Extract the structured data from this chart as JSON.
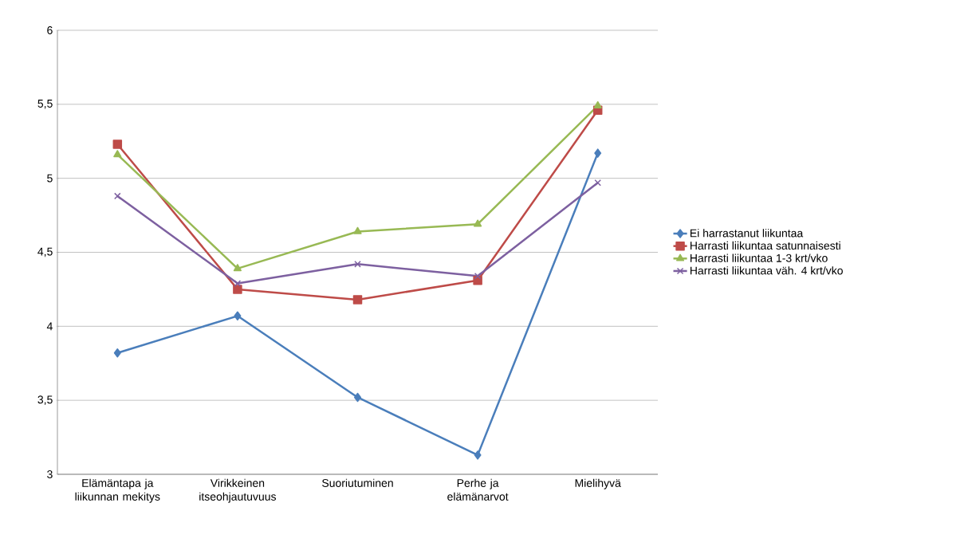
{
  "chart_data": {
    "type": "line",
    "categories": [
      "Elämäntapa ja liikunnan mekitys",
      "Virikkeinen itseohjautuvuus",
      "Suoriutuminen",
      "Perhe ja elämänarvot",
      "Mielihyvä"
    ],
    "series": [
      {
        "name": "Ei harrastanut liikuntaa",
        "color": "#4a7ebb",
        "marker": "diamond",
        "values": [
          3.82,
          4.07,
          3.52,
          3.13,
          5.17
        ]
      },
      {
        "name": "Harrasti liikuntaa satunnaisesti",
        "color": "#be4b48",
        "marker": "square",
        "values": [
          5.23,
          4.25,
          4.18,
          4.31,
          5.46
        ]
      },
      {
        "name": "Harrasti liikuntaa 1-3 krt/vko",
        "color": "#98b954",
        "marker": "triangle",
        "values": [
          5.16,
          4.39,
          4.64,
          4.69,
          5.49
        ]
      },
      {
        "name": "Harrasti liikuntaa väh. 4 krt/vko",
        "color": "#7d60a0",
        "marker": "cross",
        "values": [
          4.88,
          4.29,
          4.42,
          4.34,
          4.97
        ]
      }
    ],
    "ylim": [
      3,
      6
    ],
    "yticks": [
      3,
      {
        "value": 3.5,
        "label": "3,5"
      },
      4,
      {
        "value": 4.5,
        "label": "4,5"
      },
      5,
      {
        "value": 5.5,
        "label": "5,5"
      },
      6
    ],
    "grid": "y",
    "legend": "right",
    "line_style": "solid"
  }
}
